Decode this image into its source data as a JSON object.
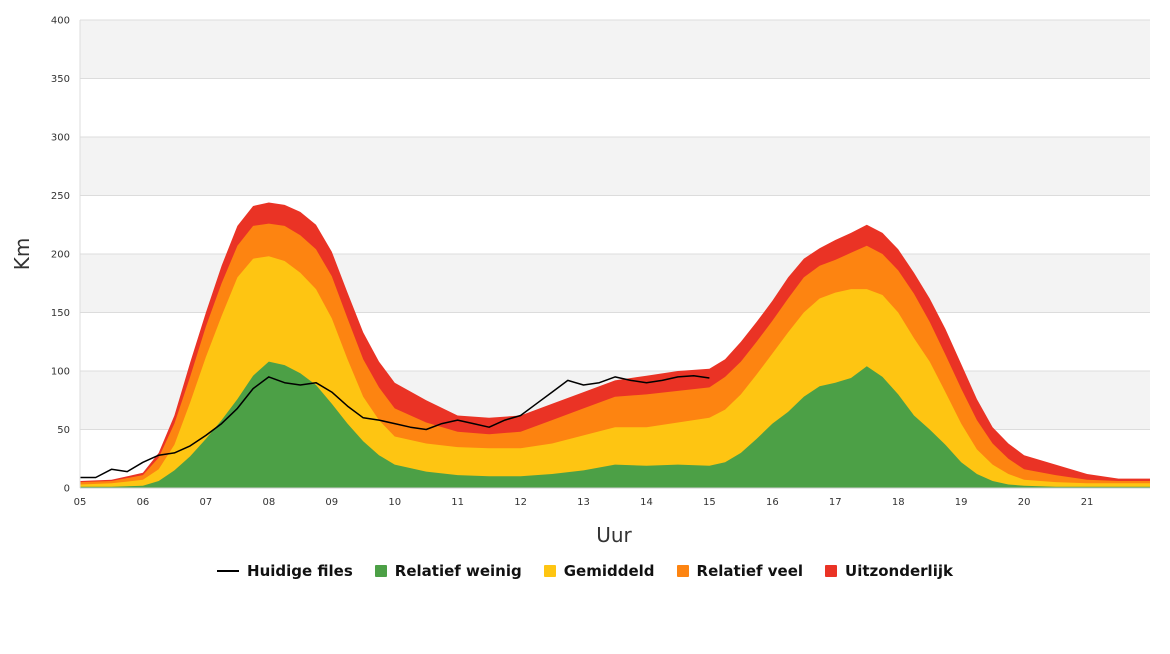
{
  "chart_data": {
    "type": "area",
    "xlabel": "Uur",
    "ylabel": "Km",
    "ylim": [
      0,
      400
    ],
    "yticks": [
      0,
      50,
      100,
      150,
      200,
      250,
      300,
      350,
      400
    ],
    "xlim": [
      5,
      22
    ],
    "xticks": [
      {
        "value": 5,
        "label": "05"
      },
      {
        "value": 6,
        "label": "06"
      },
      {
        "value": 7,
        "label": "07"
      },
      {
        "value": 8,
        "label": "08"
      },
      {
        "value": 9,
        "label": "09"
      },
      {
        "value": 10,
        "label": "10"
      },
      {
        "value": 11,
        "label": "11"
      },
      {
        "value": 12,
        "label": "12"
      },
      {
        "value": 13,
        "label": "13"
      },
      {
        "value": 14,
        "label": "14"
      },
      {
        "value": 15,
        "label": "15"
      },
      {
        "value": 16,
        "label": "16"
      },
      {
        "value": 17,
        "label": "17"
      },
      {
        "value": 18,
        "label": "18"
      },
      {
        "value": 19,
        "label": "19"
      },
      {
        "value": 20,
        "label": "20"
      },
      {
        "value": 21,
        "label": "21"
      }
    ],
    "grid": true,
    "legend_position": "bottom",
    "stacked_bands": {
      "x": [
        5,
        5.5,
        6,
        6.25,
        6.5,
        6.75,
        7,
        7.25,
        7.5,
        7.75,
        8,
        8.25,
        8.5,
        8.75,
        9,
        9.25,
        9.5,
        9.75,
        10,
        10.5,
        11,
        11.5,
        12,
        12.5,
        13,
        13.5,
        14,
        14.5,
        15,
        15.25,
        15.5,
        15.75,
        16,
        16.25,
        16.5,
        16.75,
        17,
        17.25,
        17.5,
        17.75,
        18,
        18.25,
        18.5,
        18.75,
        19,
        19.25,
        19.5,
        19.75,
        20,
        20.5,
        21,
        21.5,
        22
      ],
      "series": [
        {
          "name": "Relatief weinig",
          "color": "#4ca046",
          "values": [
            1,
            1,
            2,
            6,
            15,
            27,
            42,
            58,
            76,
            96,
            108,
            105,
            98,
            88,
            72,
            55,
            40,
            28,
            20,
            14,
            11,
            10,
            10,
            12,
            15,
            20,
            19,
            20,
            19,
            22,
            30,
            42,
            55,
            65,
            78,
            87,
            90,
            94,
            104,
            95,
            80,
            62,
            50,
            37,
            22,
            12,
            6,
            3,
            2,
            1,
            1,
            1,
            1
          ]
        },
        {
          "name": "Gemiddeld",
          "color": "#fec512",
          "values": [
            3,
            4,
            7,
            16,
            37,
            73,
            112,
            147,
            180,
            196,
            198,
            194,
            184,
            170,
            145,
            110,
            78,
            58,
            44,
            38,
            35,
            34,
            34,
            38,
            45,
            52,
            52,
            56,
            60,
            67,
            80,
            97,
            115,
            133,
            150,
            162,
            167,
            170,
            170,
            165,
            150,
            128,
            108,
            82,
            55,
            33,
            20,
            12,
            7,
            5,
            4,
            4,
            4
          ]
        },
        {
          "name": "Relatief veel",
          "color": "#fd8411",
          "values": [
            5,
            6,
            11,
            26,
            55,
            95,
            138,
            175,
            207,
            224,
            226,
            224,
            216,
            204,
            181,
            145,
            110,
            86,
            68,
            56,
            48,
            46,
            48,
            58,
            68,
            78,
            80,
            83,
            86,
            95,
            108,
            125,
            143,
            162,
            180,
            190,
            195,
            201,
            207,
            200,
            186,
            166,
            142,
            114,
            85,
            58,
            38,
            25,
            16,
            11,
            7,
            6,
            6
          ]
        },
        {
          "name": "Uitzonderlijk",
          "color": "#ea3325",
          "values": [
            6,
            7,
            13,
            30,
            62,
            107,
            150,
            190,
            224,
            241,
            244,
            242,
            236,
            225,
            202,
            167,
            133,
            108,
            90,
            75,
            62,
            60,
            62,
            72,
            82,
            92,
            96,
            100,
            102,
            110,
            125,
            142,
            160,
            180,
            196,
            205,
            212,
            218,
            225,
            218,
            204,
            184,
            162,
            136,
            106,
            76,
            52,
            38,
            28,
            20,
            12,
            8,
            8
          ]
        }
      ]
    },
    "current_line": {
      "name": "Huidige files",
      "color": "#000000",
      "x": [
        5,
        5.25,
        5.5,
        5.75,
        6,
        6.25,
        6.5,
        6.75,
        7,
        7.25,
        7.5,
        7.75,
        8,
        8.25,
        8.5,
        8.75,
        9,
        9.25,
        9.5,
        9.75,
        10,
        10.25,
        10.5,
        10.75,
        11,
        11.25,
        11.5,
        11.75,
        12,
        12.25,
        12.5,
        12.75,
        13,
        13.25,
        13.5,
        13.75,
        14,
        14.25,
        14.5,
        14.75,
        15
      ],
      "values": [
        9,
        9,
        16,
        14,
        22,
        28,
        30,
        36,
        45,
        55,
        68,
        85,
        95,
        90,
        88,
        90,
        82,
        70,
        60,
        58,
        55,
        52,
        50,
        55,
        58,
        55,
        52,
        58,
        62,
        72,
        82,
        92,
        88,
        90,
        95,
        92,
        90,
        92,
        95,
        96,
        94
      ]
    }
  },
  "legend": {
    "items": [
      {
        "label": "Huidige files",
        "color": "#000000",
        "kind": "line"
      },
      {
        "label": "Relatief weinig",
        "color": "#4ca046",
        "kind": "swatch"
      },
      {
        "label": "Gemiddeld",
        "color": "#fec512",
        "kind": "swatch"
      },
      {
        "label": "Relatief veel",
        "color": "#fd8411",
        "kind": "swatch"
      },
      {
        "label": "Uitzonderlijk",
        "color": "#ea3325",
        "kind": "swatch"
      }
    ]
  }
}
